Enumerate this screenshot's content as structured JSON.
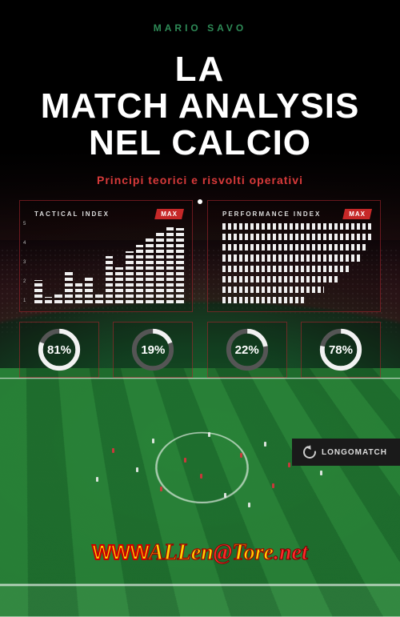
{
  "author": "MARIO SAVO",
  "title_lines": [
    "LA",
    "MATCH ANALYSIS",
    "NEL CALCIO"
  ],
  "subtitle": "Principi teorici e risvolti operativi",
  "panels": {
    "left": {
      "label": "TACTICAL INDEX",
      "tag": "MAX",
      "y_ticks": [
        "5",
        "4",
        "3",
        "2",
        "1"
      ],
      "bars_pct": [
        28,
        8,
        14,
        40,
        26,
        34,
        12,
        58,
        44,
        64,
        72,
        80,
        86,
        96,
        92
      ]
    },
    "right": {
      "label": "PERFORMANCE INDEX",
      "tag": "MAX",
      "hbars_pct": [
        100,
        100,
        96,
        92,
        86,
        78,
        68,
        56
      ]
    }
  },
  "rings": [
    {
      "pct": 81,
      "label": "81%"
    },
    {
      "pct": 19,
      "label": "19%"
    },
    {
      "pct": 22,
      "label": "22%"
    },
    {
      "pct": 78,
      "label": "78%"
    }
  ],
  "badge": "LONGOMATCH",
  "footer": {
    "www": "WWW",
    "allen": "ALLen",
    "at": "@",
    "tore": "Tore",
    "dot": ".",
    "net": "net"
  },
  "colors": {
    "accent_green": "#2e8b57",
    "accent_red": "#d93a3a",
    "panel_border": "rgba(180,40,50,0.55)",
    "ring_track": "#555",
    "ring_fill": "#f2f2f2"
  }
}
